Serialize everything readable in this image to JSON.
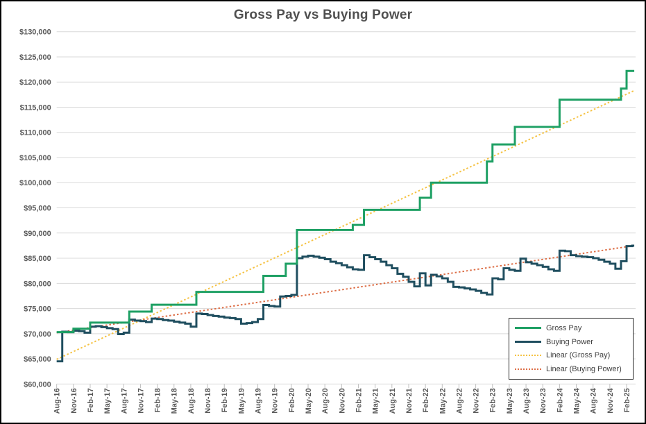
{
  "title": "Gross Pay vs Buying Power",
  "colors": {
    "gross_pay": "#1EA064",
    "buying_power": "#1F4E5F",
    "trend_gross": "#F5C242",
    "trend_buying": "#DD6E46",
    "gridline": "#D9D9D9",
    "tick": "#BFBFBF",
    "axis_label": "#595959",
    "title_text": "#4f4f4f"
  },
  "legend": {
    "items": [
      {
        "label": "Gross Pay",
        "color": "#1EA064",
        "style": "solid"
      },
      {
        "label": "Buying Power",
        "color": "#1F4E5F",
        "style": "solid"
      },
      {
        "label": "Linear (Gross Pay)",
        "color": "#F5C242",
        "style": "dotted"
      },
      {
        "label": "Linear (Buying Power)",
        "color": "#DD6E46",
        "style": "dotted"
      }
    ]
  },
  "chart_data": {
    "type": "line",
    "title": "Gross Pay vs Buying Power",
    "x_start": "Aug-16",
    "x_end": "Mar-25",
    "x_interval": "monthly",
    "x_tick_labels": [
      "Aug-16",
      "Nov-16",
      "Feb-17",
      "May-17",
      "Aug-17",
      "Nov-17",
      "Feb-18",
      "May-18",
      "Aug-18",
      "Nov-18",
      "Feb-19",
      "May-19",
      "Aug-19",
      "Nov-19",
      "Feb-20",
      "May-20",
      "Aug-20",
      "Nov-20",
      "Feb-21",
      "May-21",
      "Aug-21",
      "Nov-21",
      "Feb-22",
      "May-22",
      "Aug-22",
      "Nov-22",
      "Feb-23",
      "May-23",
      "Aug-23",
      "Nov-23",
      "Feb-24",
      "May-24",
      "Aug-24",
      "Nov-24",
      "Feb-25"
    ],
    "ylim": [
      60000,
      130000
    ],
    "y_tick_step": 5000,
    "y_tick_labels": [
      "$60,000",
      "$65,000",
      "$70,000",
      "$75,000",
      "$80,000",
      "$85,000",
      "$90,000",
      "$95,000",
      "$100,000",
      "$105,000",
      "$110,000",
      "$115,000",
      "$120,000",
      "$125,000",
      "$130,000"
    ],
    "grid": "horizontal-only",
    "legend_position": "bottom-right",
    "series": [
      {
        "name": "Gross Pay",
        "render": "step",
        "color": "#1EA064",
        "values": [
          70300,
          70300,
          70300,
          71000,
          71000,
          71000,
          72200,
          72200,
          72200,
          72200,
          72200,
          72200,
          72200,
          74400,
          74400,
          74400,
          74400,
          75750,
          75750,
          75750,
          75750,
          75750,
          75750,
          75750,
          75750,
          78300,
          78300,
          78300,
          78300,
          78300,
          78300,
          78300,
          78300,
          78300,
          78300,
          78300,
          78300,
          81500,
          81500,
          81500,
          81500,
          83900,
          83900,
          90600,
          90600,
          90600,
          90600,
          90600,
          90600,
          90600,
          90600,
          90600,
          90600,
          91600,
          91600,
          94600,
          94600,
          94600,
          94600,
          94600,
          94600,
          94600,
          94600,
          94600,
          94600,
          97000,
          97000,
          100000,
          100000,
          100000,
          100000,
          100000,
          100000,
          100000,
          100000,
          100000,
          100000,
          104200,
          107600,
          107600,
          107600,
          107600,
          111100,
          111100,
          111100,
          111100,
          111100,
          111100,
          111100,
          111100,
          116500,
          116500,
          116500,
          116500,
          116500,
          116500,
          116500,
          116500,
          116500,
          116500,
          116500,
          118700,
          122200,
          122200
        ]
      },
      {
        "name": "Buying Power",
        "render": "step",
        "color": "#1F4E5F",
        "values": [
          64500,
          70400,
          70300,
          70600,
          70500,
          70200,
          71400,
          71500,
          71300,
          71100,
          70900,
          69900,
          70200,
          72800,
          72600,
          72500,
          72300,
          73000,
          72900,
          72700,
          72600,
          72400,
          72200,
          72000,
          71400,
          74000,
          73900,
          73700,
          73500,
          73400,
          73200,
          73100,
          72900,
          72000,
          72100,
          72300,
          72900,
          75700,
          75500,
          75400,
          77400,
          77500,
          77700,
          85000,
          85300,
          85500,
          85300,
          85100,
          84800,
          84300,
          84000,
          83600,
          83200,
          82800,
          82700,
          85600,
          85200,
          84800,
          84300,
          83600,
          83000,
          81900,
          81300,
          80300,
          79400,
          82000,
          79600,
          81700,
          81400,
          81000,
          80300,
          79300,
          79200,
          79000,
          78800,
          78500,
          78100,
          77800,
          81000,
          80800,
          83000,
          82700,
          82500,
          84900,
          84200,
          83900,
          83600,
          83300,
          82800,
          82500,
          86500,
          86400,
          85600,
          85400,
          85300,
          85200,
          85000,
          84700,
          84300,
          83900,
          82900,
          84400,
          87400,
          87500
        ]
      },
      {
        "name": "Linear (Gross Pay)",
        "render": "trend",
        "color": "#F5C242",
        "dotted": true,
        "start": 64900,
        "end": 118300
      },
      {
        "name": "Linear (Buying Power)",
        "render": "trend",
        "color": "#DD6E46",
        "dotted": true,
        "start": 70200,
        "end": 87500
      }
    ]
  }
}
